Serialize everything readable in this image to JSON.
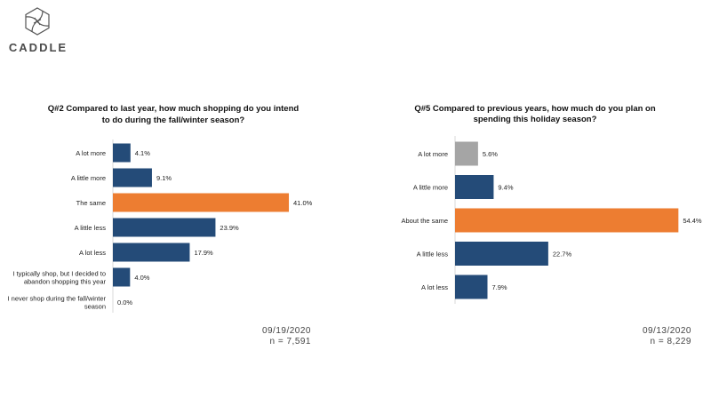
{
  "brand": {
    "name": "CADDLE"
  },
  "chart_data": [
    {
      "type": "bar",
      "orientation": "horizontal",
      "title_lines": [
        "Q#2 Compared to last year, how much shopping do you intend",
        "to do during the fall/winter season?"
      ],
      "categories": [
        [
          "A lot more"
        ],
        [
          "A little more"
        ],
        [
          "The same"
        ],
        [
          "A little less"
        ],
        [
          "A lot less"
        ],
        [
          "I typically shop, but I decided to",
          "abandon shopping this year"
        ],
        [
          "I never shop during the fall/winter",
          "season"
        ]
      ],
      "values": [
        4.1,
        9.1,
        41.0,
        23.9,
        17.9,
        4.0,
        0.0
      ],
      "value_labels": [
        "4.1%",
        "9.1%",
        "41.0%",
        "23.9%",
        "17.9%",
        "4.0%",
        "0.0%"
      ],
      "colors": [
        "#244B78",
        "#244B78",
        "#ED7D31",
        "#244B78",
        "#244B78",
        "#244B78",
        "#244B78"
      ],
      "date": "09/19/2020",
      "sample": "n = 7,591"
    },
    {
      "type": "bar",
      "orientation": "horizontal",
      "title_lines": [
        "Q#5 Compared to previous years, how much do you plan on",
        "spending this holiday season?"
      ],
      "categories": [
        [
          "A lot more"
        ],
        [
          "A little more"
        ],
        [
          "About the same"
        ],
        [
          "A little less"
        ],
        [
          "A lot less"
        ]
      ],
      "values": [
        5.6,
        9.4,
        54.4,
        22.7,
        7.9
      ],
      "value_labels": [
        "5.6%",
        "9.4%",
        "54.4%",
        "22.7%",
        "7.9%"
      ],
      "colors": [
        "#A5A5A5",
        "#244B78",
        "#ED7D31",
        "#244B78",
        "#244B78"
      ],
      "date": "09/13/2020",
      "sample": "n = 8,229"
    }
  ]
}
